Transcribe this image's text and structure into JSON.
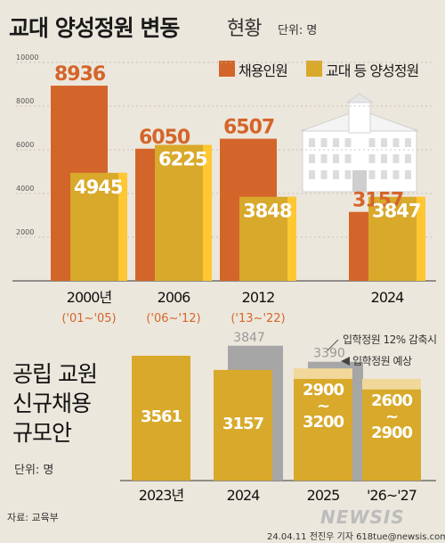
{
  "header": {
    "title_bold": "교대 양성정원 변동",
    "title_light": "현황",
    "unit": "단위: 명"
  },
  "legend": [
    {
      "label": "채용인원",
      "color": "#d4652a"
    },
    {
      "label": "교대 등 양성정원",
      "color": "#d8a92a"
    }
  ],
  "section2": {
    "title_lines": [
      "공립 교원",
      "신규채용",
      "규모안"
    ],
    "unit": "단위: 명"
  },
  "annotations": {
    "cut_note": "입학정원 12% 감축시",
    "expected_note": "입학정원 예상"
  },
  "footer": {
    "source": "자료: 교육부",
    "credit": "24.04.11 전진우 기자 618tue@newsis.com",
    "logo": "NEWSIS"
  },
  "chart_data": [
    {
      "type": "bar",
      "yticks": [
        0,
        2000,
        4000,
        6000,
        8000,
        10000
      ],
      "ylim": [
        0,
        10000
      ],
      "categories": [
        "2000년",
        "2006",
        "2012",
        "2024"
      ],
      "category_sublabels": [
        "('01~'05)",
        "('06~'12)",
        "('13~'22)",
        ""
      ],
      "series": [
        {
          "name": "채용인원",
          "values": [
            8936,
            6050,
            6507,
            3157
          ],
          "color": "#d4652a"
        },
        {
          "name": "교대 등 양성정원",
          "values": [
            4945,
            6225,
            3848,
            3847
          ],
          "color": "#d8a92a"
        }
      ]
    },
    {
      "type": "bar",
      "categories": [
        "2023년",
        "2024",
        "2025",
        "'26~'27"
      ],
      "values": [
        3561,
        3157,
        3200,
        2900
      ],
      "value_labels": [
        "3561",
        "3157",
        "2900\n~\n3200",
        "2600\n~\n2900"
      ],
      "range_low": [
        null,
        null,
        2900,
        2600
      ],
      "reference_values": [
        null,
        3847,
        3390,
        null
      ],
      "reference_labels": [
        "",
        "3847",
        "3390",
        ""
      ],
      "color": "#d8a92a",
      "reference_color": "#a6a6a6"
    }
  ]
}
